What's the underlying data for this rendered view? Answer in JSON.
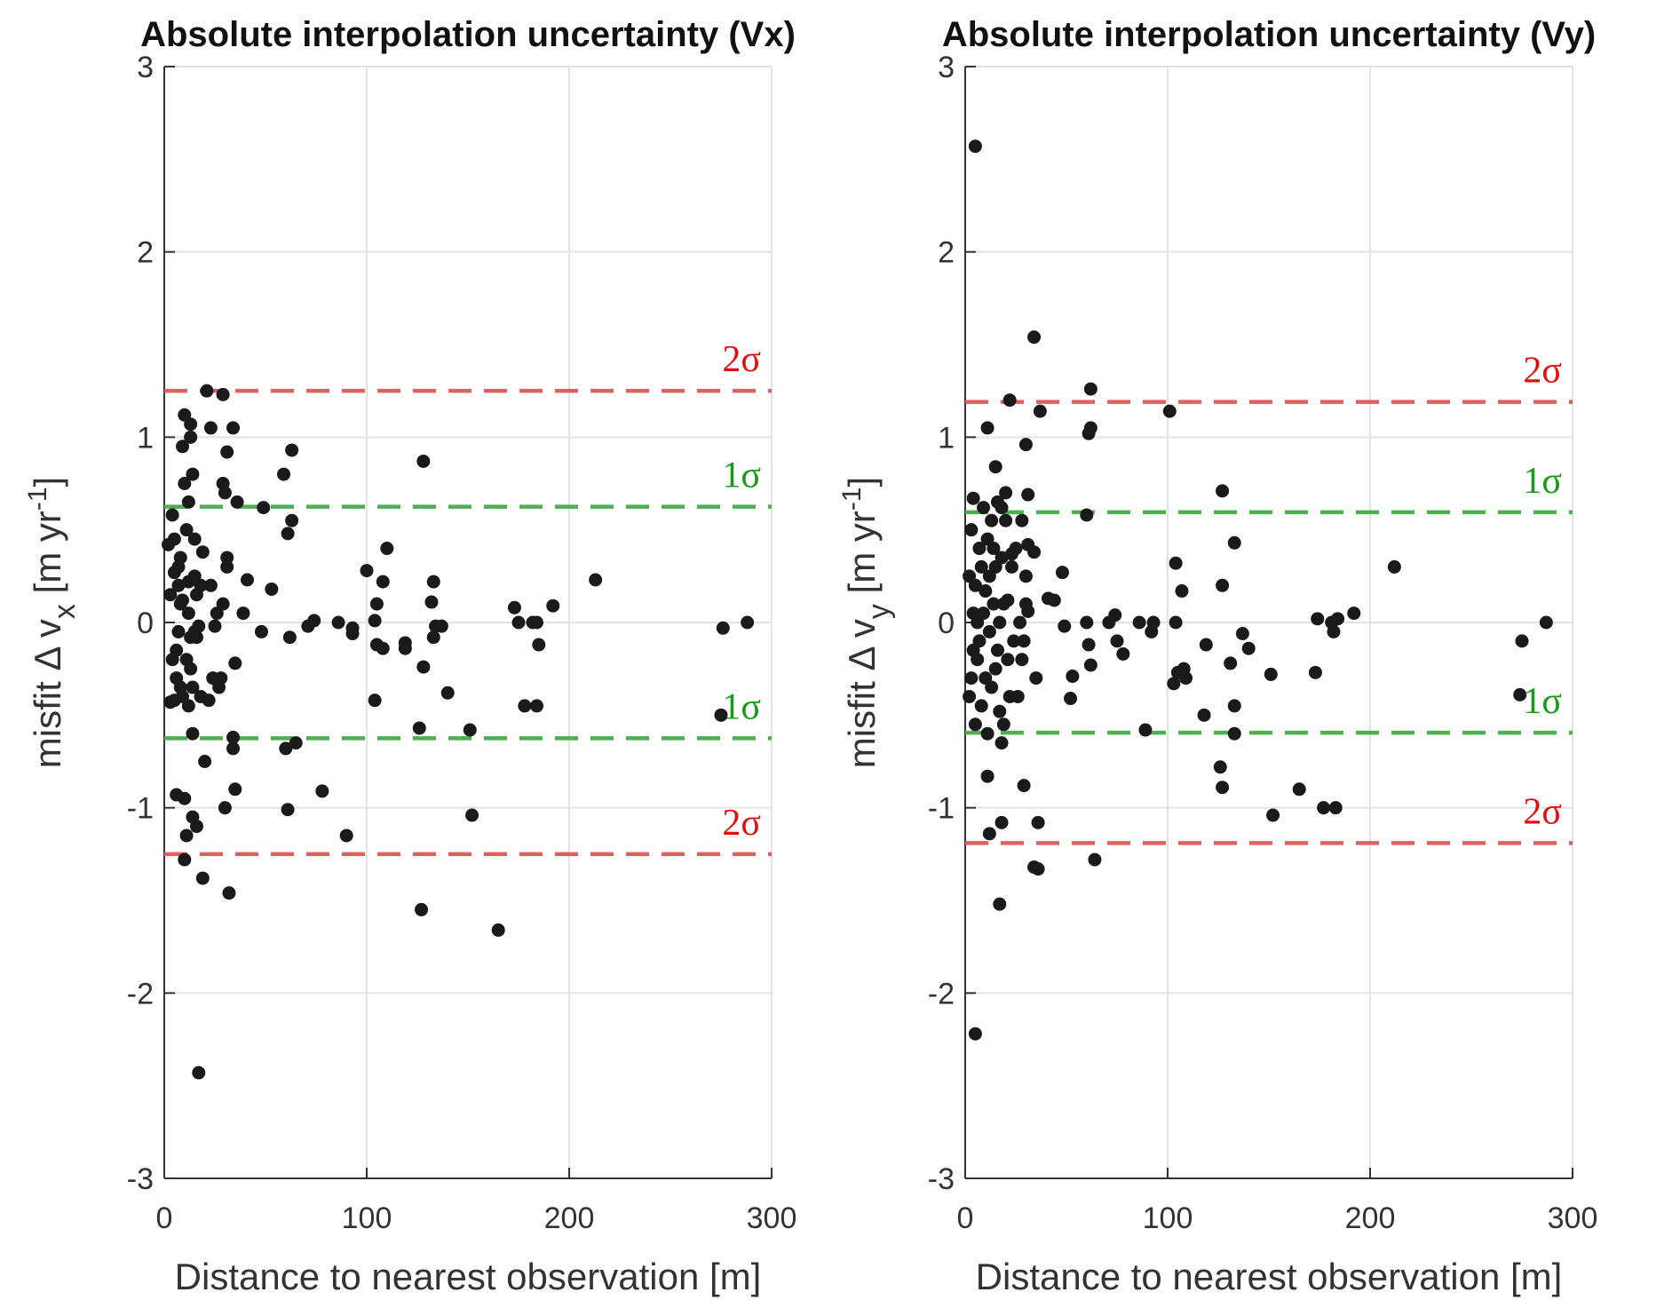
{
  "chart_data": [
    {
      "type": "scatter",
      "title": "Absolute interpolation uncertainty (Vx)",
      "xlabel": "Distance to nearest observation [m]",
      "ylabel": {
        "main": "misfit Δ v",
        "sub": "x",
        "unit_pre": " [m yr",
        "sup": "-1",
        "unit_post": "]"
      },
      "xlim": [
        0,
        300
      ],
      "ylim": [
        -3,
        3
      ],
      "xticks": [
        "0",
        "100",
        "200",
        "300"
      ],
      "yticks": [
        "-3",
        "-2",
        "-1",
        "0",
        "1",
        "2",
        "3"
      ],
      "grid": true,
      "marker_color": "#1a1a1a",
      "reference_lines": [
        {
          "label": "2σ",
          "value": 1.25,
          "color": "#e06060",
          "text_color": "#d11"
        },
        {
          "label": "1σ",
          "value": 0.625,
          "color": "#4caf50",
          "text_color": "#1a9a1a"
        },
        {
          "label": "1σ",
          "value": -0.625,
          "color": "#4caf50",
          "text_color": "#1a9a1a"
        },
        {
          "label": "2σ",
          "value": -1.25,
          "color": "#e06060",
          "text_color": "#d11"
        }
      ],
      "points": [
        [
          2,
          0.42
        ],
        [
          3,
          -0.43
        ],
        [
          4,
          0.58
        ],
        [
          5,
          0.45
        ],
        [
          5,
          0.27
        ],
        [
          6,
          -0.3
        ],
        [
          6,
          -0.15
        ],
        [
          6,
          -0.93
        ],
        [
          7,
          0.3
        ],
        [
          7,
          0.2
        ],
        [
          7,
          -0.05
        ],
        [
          8,
          0.35
        ],
        [
          8,
          0.1
        ],
        [
          8,
          -0.35
        ],
        [
          9,
          0.95
        ],
        [
          10,
          1.12
        ],
        [
          10,
          0.75
        ],
        [
          10,
          -0.95
        ],
        [
          10,
          -1.28
        ],
        [
          11,
          0.5
        ],
        [
          11,
          -0.2
        ],
        [
          12,
          0.65
        ],
        [
          12,
          -0.45
        ],
        [
          13,
          1.07
        ],
        [
          13,
          1.0
        ],
        [
          13,
          -0.08
        ],
        [
          14,
          0.8
        ],
        [
          14,
          -0.6
        ],
        [
          14,
          -1.05
        ],
        [
          17,
          -2.43
        ],
        [
          16,
          -1.1
        ],
        [
          15,
          0.25
        ],
        [
          15,
          0.45
        ],
        [
          16,
          -0.08
        ],
        [
          21,
          1.25
        ],
        [
          20,
          -0.75
        ],
        [
          19,
          -1.38
        ],
        [
          23,
          1.05
        ],
        [
          18,
          -0.4
        ],
        [
          18,
          0.2
        ],
        [
          17,
          -0.02
        ],
        [
          19,
          0.38
        ],
        [
          11,
          -1.15
        ],
        [
          12,
          0.22
        ],
        [
          12,
          0.05
        ],
        [
          13,
          -0.25
        ],
        [
          14,
          -0.35
        ],
        [
          15,
          -0.05
        ],
        [
          16,
          0.15
        ],
        [
          9,
          -0.4
        ],
        [
          9,
          0.12
        ],
        [
          4,
          -0.2
        ],
        [
          3,
          0.15
        ],
        [
          5,
          -0.42
        ],
        [
          22,
          -0.42
        ],
        [
          23,
          0.2
        ],
        [
          24,
          -0.3
        ],
        [
          25,
          -0.02
        ],
        [
          26,
          0.05
        ],
        [
          27,
          -0.35
        ],
        [
          28,
          -0.3
        ],
        [
          29,
          1.23
        ],
        [
          29,
          0.75
        ],
        [
          30,
          0.7
        ],
        [
          31,
          0.3
        ],
        [
          29,
          0.1
        ],
        [
          30,
          -1.0
        ],
        [
          31,
          0.92
        ],
        [
          32,
          -1.46
        ],
        [
          31,
          0.35
        ],
        [
          34,
          1.05
        ],
        [
          36,
          0.65
        ],
        [
          35,
          -0.22
        ],
        [
          34,
          -0.62
        ],
        [
          34,
          -0.68
        ],
        [
          35,
          -0.9
        ],
        [
          39,
          0.05
        ],
        [
          41,
          0.23
        ],
        [
          49,
          0.62
        ],
        [
          48,
          -0.05
        ],
        [
          53,
          0.18
        ],
        [
          59,
          0.8
        ],
        [
          61,
          0.48
        ],
        [
          60,
          -0.68
        ],
        [
          61,
          -1.01
        ],
        [
          62,
          -0.08
        ],
        [
          63,
          0.55
        ],
        [
          63,
          0.93
        ],
        [
          65,
          -0.65
        ],
        [
          71,
          -0.02
        ],
        [
          74,
          0.01
        ],
        [
          78,
          -0.91
        ],
        [
          86,
          0.0
        ],
        [
          90,
          -1.15
        ],
        [
          93,
          -0.03
        ],
        [
          93,
          -0.06
        ],
        [
          100,
          0.28
        ],
        [
          104,
          -0.42
        ],
        [
          104,
          0.01
        ],
        [
          105,
          0.1
        ],
        [
          108,
          0.22
        ],
        [
          110,
          0.4
        ],
        [
          105,
          -0.12
        ],
        [
          108,
          -0.14
        ],
        [
          119,
          -0.11
        ],
        [
          119,
          -0.14
        ],
        [
          126,
          -0.57
        ],
        [
          128,
          0.87
        ],
        [
          128,
          -0.24
        ],
        [
          127,
          -1.55
        ],
        [
          132,
          0.11
        ],
        [
          133,
          0.22
        ],
        [
          133,
          -0.08
        ],
        [
          134,
          -0.02
        ],
        [
          137,
          -0.02
        ],
        [
          140,
          -0.38
        ],
        [
          151,
          -0.58
        ],
        [
          152,
          -1.04
        ],
        [
          165,
          -1.66
        ],
        [
          173,
          0.08
        ],
        [
          175,
          0.0
        ],
        [
          178,
          -0.45
        ],
        [
          182,
          0.0
        ],
        [
          184,
          -0.45
        ],
        [
          184,
          0.0
        ],
        [
          185,
          -0.12
        ],
        [
          192,
          0.09
        ],
        [
          213,
          0.23
        ],
        [
          275,
          -0.5
        ],
        [
          276,
          -0.03
        ],
        [
          288,
          0.0
        ]
      ]
    },
    {
      "type": "scatter",
      "title": "Absolute interpolation uncertainty (Vy)",
      "xlabel": "Distance to nearest observation [m]",
      "ylabel": {
        "main": "misfit Δ v",
        "sub": "y",
        "unit_pre": " [m yr",
        "sup": "-1",
        "unit_post": "]"
      },
      "xlim": [
        0,
        300
      ],
      "ylim": [
        -3,
        3
      ],
      "xticks": [
        "0",
        "100",
        "200",
        "300"
      ],
      "yticks": [
        "-3",
        "-2",
        "-1",
        "0",
        "1",
        "2",
        "3"
      ],
      "grid": true,
      "marker_color": "#1a1a1a",
      "reference_lines": [
        {
          "label": "2σ",
          "value": 1.19,
          "color": "#e06060",
          "text_color": "#d11"
        },
        {
          "label": "1σ",
          "value": 0.595,
          "color": "#4caf50",
          "text_color": "#1a9a1a"
        },
        {
          "label": "1σ",
          "value": -0.595,
          "color": "#4caf50",
          "text_color": "#1a9a1a"
        },
        {
          "label": "2σ",
          "value": -1.19,
          "color": "#e06060",
          "text_color": "#d11"
        }
      ],
      "points": [
        [
          5,
          2.57
        ],
        [
          5,
          -2.22
        ],
        [
          34,
          1.54
        ],
        [
          62,
          1.26
        ],
        [
          62,
          1.05
        ],
        [
          61,
          1.02
        ],
        [
          101,
          1.14
        ],
        [
          11,
          1.05
        ],
        [
          22,
          1.2
        ],
        [
          37,
          1.14
        ],
        [
          30,
          0.96
        ],
        [
          15,
          0.84
        ],
        [
          127,
          0.71
        ],
        [
          133,
          0.43
        ],
        [
          212,
          0.3
        ],
        [
          104,
          0.32
        ],
        [
          107,
          0.17
        ],
        [
          127,
          0.2
        ],
        [
          60,
          0.58
        ],
        [
          48,
          0.27
        ],
        [
          41,
          0.13
        ],
        [
          44,
          0.12
        ],
        [
          60,
          0.0
        ],
        [
          71,
          0.0
        ],
        [
          74,
          0.04
        ],
        [
          86,
          0.0
        ],
        [
          93,
          0.0
        ],
        [
          92,
          -0.05
        ],
        [
          104,
          0.0
        ],
        [
          75,
          -0.1
        ],
        [
          78,
          -0.17
        ],
        [
          61,
          -0.12
        ],
        [
          62,
          -0.23
        ],
        [
          53,
          -0.29
        ],
        [
          52,
          -0.41
        ],
        [
          49,
          -0.02
        ],
        [
          89,
          -0.58
        ],
        [
          103,
          -0.33
        ],
        [
          105,
          -0.27
        ],
        [
          108,
          -0.25
        ],
        [
          109,
          -0.3
        ],
        [
          119,
          -0.12
        ],
        [
          118,
          -0.5
        ],
        [
          126,
          -0.78
        ],
        [
          127,
          -0.89
        ],
        [
          131,
          -0.22
        ],
        [
          133,
          -0.45
        ],
        [
          133,
          -0.6
        ],
        [
          137,
          -0.06
        ],
        [
          140,
          -0.14
        ],
        [
          151,
          -0.28
        ],
        [
          152,
          -1.04
        ],
        [
          165,
          -0.9
        ],
        [
          173,
          -0.27
        ],
        [
          174,
          0.02
        ],
        [
          181,
          0.0
        ],
        [
          182,
          -0.05
        ],
        [
          177,
          -1.0
        ],
        [
          183,
          -1.0
        ],
        [
          184,
          0.02
        ],
        [
          192,
          0.05
        ],
        [
          274,
          -0.39
        ],
        [
          275,
          -0.1
        ],
        [
          287,
          0.0
        ],
        [
          34,
          -1.32
        ],
        [
          36,
          -1.33
        ],
        [
          36,
          -1.08
        ],
        [
          64,
          -1.28
        ],
        [
          18,
          -1.08
        ],
        [
          17,
          -1.52
        ],
        [
          12,
          -1.14
        ],
        [
          29,
          -0.88
        ],
        [
          35,
          -0.3
        ],
        [
          31,
          0.06
        ],
        [
          30,
          0.1
        ],
        [
          31,
          0.42
        ],
        [
          34,
          0.38
        ],
        [
          31,
          0.69
        ],
        [
          28,
          0.55
        ],
        [
          23,
          0.37
        ],
        [
          18,
          0.62
        ],
        [
          20,
          0.7
        ],
        [
          2,
          0.25
        ],
        [
          2,
          -0.4
        ],
        [
          3,
          0.5
        ],
        [
          3,
          -0.3
        ],
        [
          4,
          0.05
        ],
        [
          4,
          -0.15
        ],
        [
          4,
          0.67
        ],
        [
          5,
          0.2
        ],
        [
          5,
          -0.55
        ],
        [
          6,
          0.0
        ],
        [
          6,
          -0.2
        ],
        [
          7,
          0.4
        ],
        [
          7,
          -0.1
        ],
        [
          8,
          0.3
        ],
        [
          8,
          -0.45
        ],
        [
          9,
          0.05
        ],
        [
          9,
          0.62
        ],
        [
          10,
          -0.3
        ],
        [
          10,
          0.17
        ],
        [
          11,
          0.45
        ],
        [
          11,
          -0.6
        ],
        [
          11,
          -0.83
        ],
        [
          12,
          0.25
        ],
        [
          12,
          -0.05
        ],
        [
          13,
          0.55
        ],
        [
          13,
          -0.35
        ],
        [
          14,
          0.1
        ],
        [
          14,
          0.4
        ],
        [
          15,
          -0.25
        ],
        [
          15,
          0.3
        ],
        [
          16,
          0.65
        ],
        [
          16,
          -0.15
        ],
        [
          17,
          0.0
        ],
        [
          17,
          -0.48
        ],
        [
          18,
          0.35
        ],
        [
          18,
          -0.65
        ],
        [
          19,
          0.1
        ],
        [
          19,
          -0.55
        ],
        [
          20,
          0.55
        ],
        [
          21,
          -0.2
        ],
        [
          21,
          0.12
        ],
        [
          22,
          -0.4
        ],
        [
          23,
          0.3
        ],
        [
          24,
          -0.1
        ],
        [
          25,
          0.4
        ],
        [
          26,
          -0.4
        ],
        [
          27,
          0.0
        ],
        [
          28,
          -0.2
        ],
        [
          29,
          -0.1
        ],
        [
          30,
          0.25
        ]
      ]
    }
  ]
}
